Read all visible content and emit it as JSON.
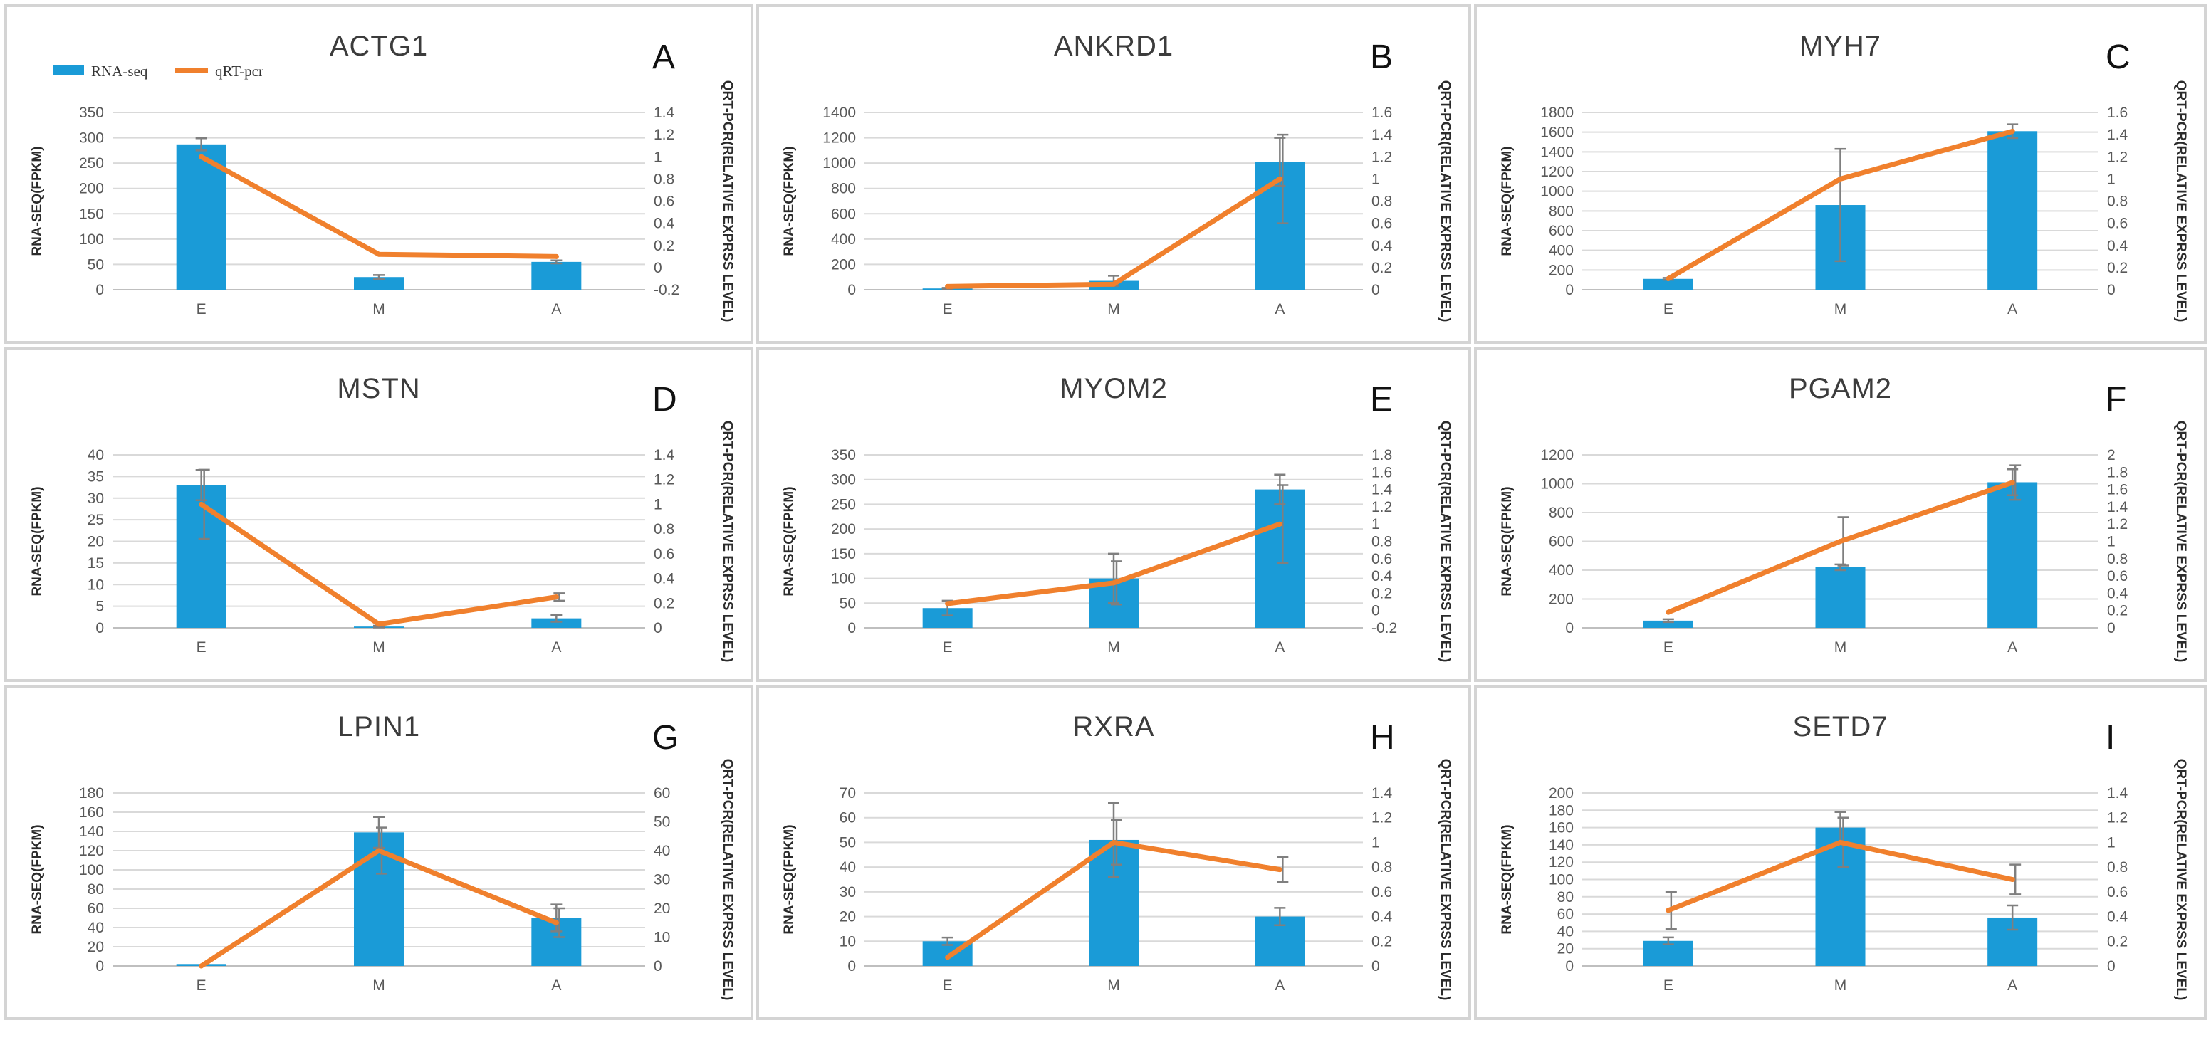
{
  "legend": {
    "rna_label": "RNA-seq",
    "qpcr_label": "qRT-pcr",
    "rna_color": "#1a9bd7",
    "qpcr_color": "#f0802d"
  },
  "chart_data": [
    {
      "type": "bar",
      "panel": "A",
      "title": "ACTG1",
      "categories": [
        "E",
        "M",
        "A"
      ],
      "ylabel": "RNA-SEQ(FPKM)",
      "y2label": "QRT-PCR(RELATIVE EXPRSS LEVEL)",
      "ylim": [
        0,
        350
      ],
      "yticks": [
        0,
        50,
        100,
        150,
        200,
        250,
        300,
        350
      ],
      "y2lim": [
        -0.2,
        1.4
      ],
      "y2ticks": [
        -0.2,
        0,
        0.2,
        0.4,
        0.6,
        0.8,
        1,
        1.2,
        1.4
      ],
      "y2ticklabels": [
        "-0.2",
        "0",
        "0.2",
        "0.4",
        "0.6",
        "0.8",
        "1",
        "1.2",
        "1.4"
      ],
      "series": [
        {
          "name": "RNA-seq",
          "kind": "bar",
          "values": [
            287,
            25,
            55
          ],
          "errors": [
            12,
            4,
            3
          ]
        },
        {
          "name": "qRT-pcr",
          "kind": "line",
          "axis": "right",
          "values": [
            1.0,
            0.12,
            0.1
          ],
          "errors": [
            0,
            0,
            0
          ]
        }
      ]
    },
    {
      "type": "bar",
      "panel": "B",
      "title": "ANKRD1",
      "categories": [
        "E",
        "M",
        "A"
      ],
      "ylabel": "RNA-SEQ(FPKM)",
      "y2label": "QRT-PCR(RELATIVE EXPRSS LEVEL)",
      "ylim": [
        0,
        1400
      ],
      "yticks": [
        0,
        200,
        400,
        600,
        800,
        1000,
        1200,
        1400
      ],
      "y2lim": [
        0,
        1.6
      ],
      "y2ticks": [
        0,
        0.2,
        0.4,
        0.6,
        0.8,
        1,
        1.2,
        1.4,
        1.6
      ],
      "y2ticklabels": [
        "0",
        "0.2",
        "0.4",
        "0.6",
        "0.8",
        "1",
        "1.2",
        "1.4",
        "1.6"
      ],
      "series": [
        {
          "name": "RNA-seq",
          "kind": "bar",
          "values": [
            10,
            70,
            1010
          ],
          "errors": [
            5,
            40,
            190
          ]
        },
        {
          "name": "qRT-pcr",
          "kind": "line",
          "axis": "right",
          "values": [
            0.03,
            0.05,
            1.0
          ],
          "errors": [
            0,
            0,
            0.4
          ]
        }
      ]
    },
    {
      "type": "bar",
      "panel": "C",
      "title": "MYH7",
      "categories": [
        "E",
        "M",
        "A"
      ],
      "ylabel": "RNA-SEQ(FPKM)",
      "y2label": "QRT-PCR(RELATIVE EXPRSS LEVEL)",
      "ylim": [
        0,
        1800
      ],
      "yticks": [
        0,
        200,
        400,
        600,
        800,
        1000,
        1200,
        1400,
        1600,
        1800
      ],
      "y2lim": [
        0,
        1.6
      ],
      "y2ticks": [
        0,
        0.2,
        0.4,
        0.6,
        0.8,
        1,
        1.2,
        1.4,
        1.6
      ],
      "y2ticklabels": [
        "0",
        "0.2",
        "0.4",
        "0.6",
        "0.8",
        "1",
        "1.2",
        "1.4",
        "1.6"
      ],
      "series": [
        {
          "name": "RNA-seq",
          "kind": "bar",
          "values": [
            110,
            860,
            1610
          ],
          "errors": [
            10,
            570,
            70
          ]
        },
        {
          "name": "qRT-pcr",
          "kind": "line",
          "axis": "right",
          "values": [
            0.1,
            1.0,
            1.43
          ],
          "errors": [
            0,
            0,
            0
          ]
        }
      ]
    },
    {
      "type": "bar",
      "panel": "D",
      "title": "MSTN",
      "categories": [
        "E",
        "M",
        "A"
      ],
      "ylabel": "RNA-SEQ(FPKM)",
      "y2label": "QRT-PCR(RELATIVE EXPRSS LEVEL)",
      "ylim": [
        0,
        40
      ],
      "yticks": [
        0,
        5,
        10,
        15,
        20,
        25,
        30,
        35,
        40
      ],
      "y2lim": [
        0,
        1.4
      ],
      "y2ticks": [
        0,
        0.2,
        0.4,
        0.6,
        0.8,
        1,
        1.2,
        1.4
      ],
      "y2ticklabels": [
        "0",
        "0.2",
        "0.4",
        "0.6",
        "0.8",
        "1",
        "1.2",
        "1.4"
      ],
      "series": [
        {
          "name": "RNA-seq",
          "kind": "bar",
          "values": [
            33,
            0.3,
            2.2
          ],
          "errors": [
            3.5,
            0.2,
            0.8
          ]
        },
        {
          "name": "qRT-pcr",
          "kind": "line",
          "axis": "right",
          "values": [
            1.0,
            0.03,
            0.25
          ],
          "errors": [
            0.28,
            0,
            0.03
          ]
        }
      ]
    },
    {
      "type": "bar",
      "panel": "E",
      "title": "MYOM2",
      "categories": [
        "E",
        "M",
        "A"
      ],
      "ylabel": "RNA-SEQ(FPKM)",
      "y2label": "QRT-PCR(RELATIVE EXPRSS LEVEL)",
      "ylim": [
        0,
        350
      ],
      "yticks": [
        0,
        50,
        100,
        150,
        200,
        250,
        300,
        350
      ],
      "y2lim": [
        -0.2,
        1.8
      ],
      "y2ticks": [
        -0.2,
        0,
        0.2,
        0.4,
        0.6,
        0.8,
        1,
        1.2,
        1.4,
        1.6,
        1.8
      ],
      "y2ticklabels": [
        "-0.2",
        "0",
        "0.2",
        "0.4",
        "0.6",
        "0.8",
        "1",
        "1.2",
        "1.4",
        "1.6",
        "1.8"
      ],
      "series": [
        {
          "name": "RNA-seq",
          "kind": "bar",
          "values": [
            40,
            100,
            280
          ],
          "errors": [
            15,
            50,
            30
          ]
        },
        {
          "name": "qRT-pcr",
          "kind": "line",
          "axis": "right",
          "values": [
            0.08,
            0.32,
            1.0
          ],
          "errors": [
            0,
            0.25,
            0.45
          ]
        }
      ]
    },
    {
      "type": "bar",
      "panel": "F",
      "title": "PGAM2",
      "categories": [
        "E",
        "M",
        "A"
      ],
      "ylabel": "RNA-SEQ(FPKM)",
      "y2label": "QRT-PCR(RELATIVE EXPRSS LEVEL)",
      "ylim": [
        0,
        1200
      ],
      "yticks": [
        0,
        200,
        400,
        600,
        800,
        1000,
        1200
      ],
      "y2lim": [
        0,
        2
      ],
      "y2ticks": [
        0,
        0.2,
        0.4,
        0.6,
        0.8,
        1,
        1.2,
        1.4,
        1.6,
        1.8,
        2
      ],
      "y2ticklabels": [
        "0",
        "0.2",
        "0.4",
        "0.6",
        "0.8",
        "1",
        "1.2",
        "1.4",
        "1.6",
        "1.8",
        "2"
      ],
      "series": [
        {
          "name": "RNA-seq",
          "kind": "bar",
          "values": [
            50,
            420,
            1010
          ],
          "errors": [
            10,
            20,
            90
          ]
        },
        {
          "name": "qRT-pcr",
          "kind": "line",
          "axis": "right",
          "values": [
            0.18,
            1.0,
            1.68
          ],
          "errors": [
            0,
            0.28,
            0.2
          ]
        }
      ]
    },
    {
      "type": "bar",
      "panel": "G",
      "title": "LPIN1",
      "categories": [
        "E",
        "M",
        "A"
      ],
      "ylabel": "RNA-SEQ(FPKM)",
      "y2label": "QRT-PCR(RELATIVE EXPRSS LEVEL)",
      "ylim": [
        0,
        180
      ],
      "yticks": [
        0,
        20,
        40,
        60,
        80,
        100,
        120,
        140,
        160,
        180
      ],
      "y2lim": [
        0,
        60
      ],
      "y2ticks": [
        0,
        10,
        20,
        30,
        40,
        50,
        60
      ],
      "y2ticklabels": [
        "0",
        "10",
        "20",
        "30",
        "40",
        "50",
        "60"
      ],
      "series": [
        {
          "name": "RNA-seq",
          "kind": "bar",
          "values": [
            2,
            139,
            50
          ],
          "errors": [
            0,
            16,
            14
          ]
        },
        {
          "name": "qRT-pcr",
          "kind": "line",
          "axis": "right",
          "values": [
            0,
            40,
            15
          ],
          "errors": [
            0,
            8,
            5
          ]
        }
      ]
    },
    {
      "type": "bar",
      "panel": "H",
      "title": "RXRA",
      "categories": [
        "E",
        "M",
        "A"
      ],
      "ylabel": "RNA-SEQ(FPKM)",
      "y2label": "QRT-PCR(RELATIVE EXPRSS LEVEL)",
      "ylim": [
        0,
        70
      ],
      "yticks": [
        0,
        10,
        20,
        30,
        40,
        50,
        60,
        70
      ],
      "y2lim": [
        0,
        1.4
      ],
      "y2ticks": [
        0,
        0.2,
        0.4,
        0.6,
        0.8,
        1,
        1.2,
        1.4
      ],
      "y2ticklabels": [
        "0",
        "0.2",
        "0.4",
        "0.6",
        "0.8",
        "1",
        "1.2",
        "1.4"
      ],
      "series": [
        {
          "name": "RNA-seq",
          "kind": "bar",
          "values": [
            10,
            51,
            20
          ],
          "errors": [
            1.5,
            15,
            3.5
          ]
        },
        {
          "name": "qRT-pcr",
          "kind": "line",
          "axis": "right",
          "values": [
            0.07,
            1.0,
            0.78
          ],
          "errors": [
            0,
            0.18,
            0.1
          ]
        }
      ]
    },
    {
      "type": "bar",
      "panel": "I",
      "title": "SETD7",
      "categories": [
        "E",
        "M",
        "A"
      ],
      "ylabel": "RNA-SEQ(FPKM)",
      "y2label": "QRT-PCR(RELATIVE EXPRSS LEVEL)",
      "ylim": [
        0,
        200
      ],
      "yticks": [
        0,
        20,
        40,
        60,
        80,
        100,
        120,
        140,
        160,
        180,
        200
      ],
      "y2lim": [
        0,
        1.4
      ],
      "y2ticks": [
        0,
        0.2,
        0.4,
        0.6,
        0.8,
        1,
        1.2,
        1.4
      ],
      "y2ticklabels": [
        "0",
        "0.2",
        "0.4",
        "0.6",
        "0.8",
        "1",
        "1.2",
        "1.4"
      ],
      "series": [
        {
          "name": "RNA-seq",
          "kind": "bar",
          "values": [
            29,
            160,
            56
          ],
          "errors": [
            4,
            18,
            14
          ]
        },
        {
          "name": "qRT-pcr",
          "kind": "line",
          "axis": "right",
          "values": [
            0.45,
            1.0,
            0.7
          ],
          "errors": [
            0.15,
            0.2,
            0.12
          ]
        }
      ]
    }
  ]
}
